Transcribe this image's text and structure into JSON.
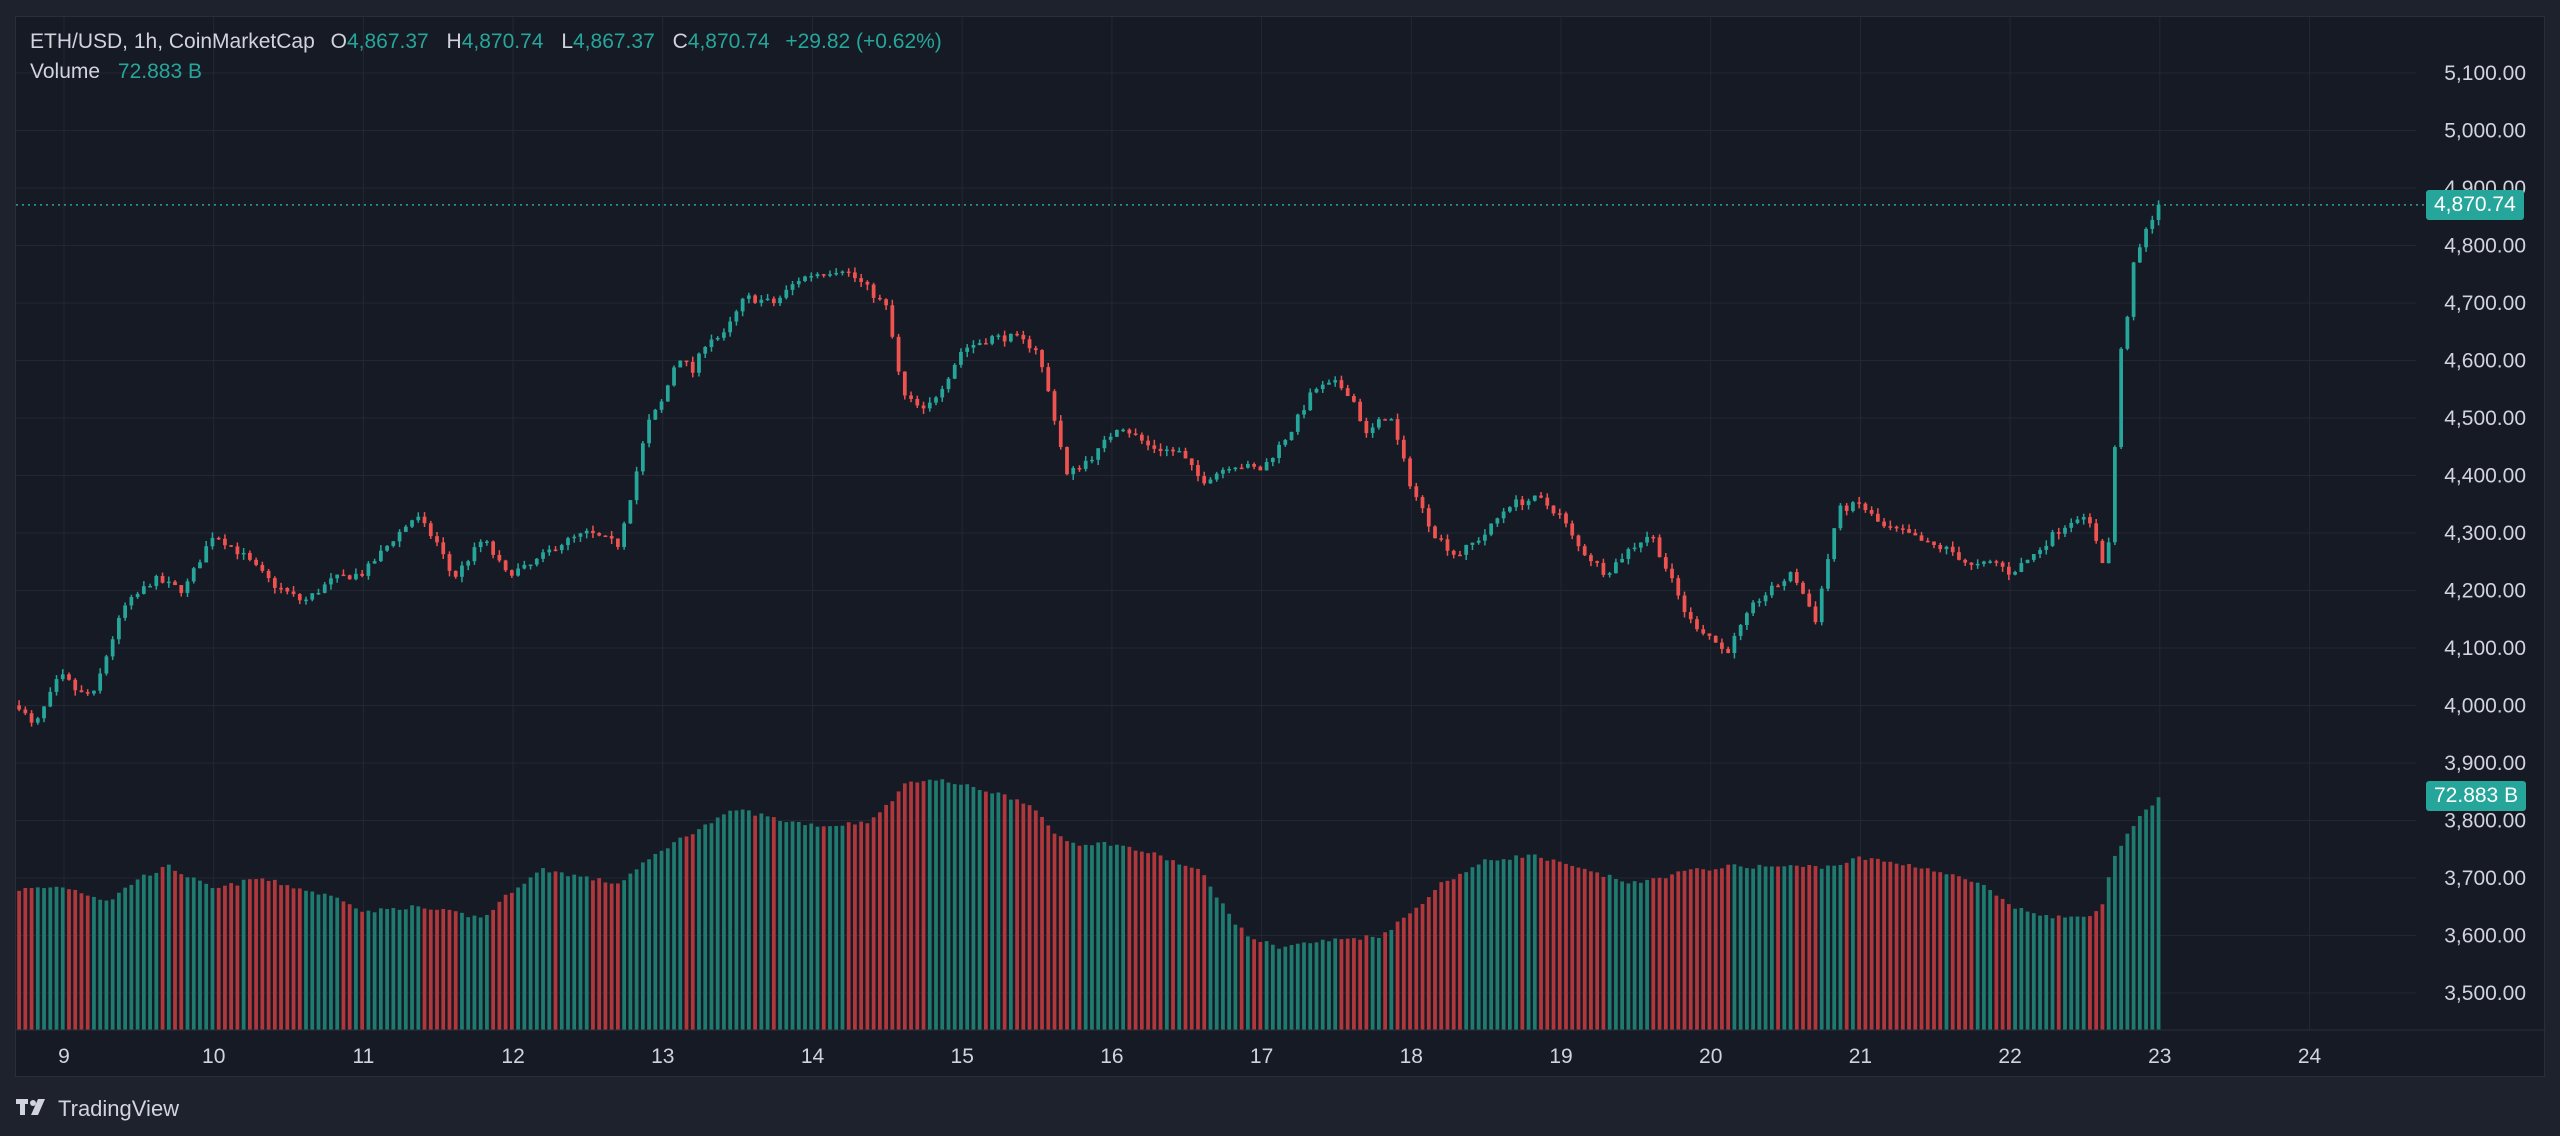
{
  "legend": {
    "symbol": "ETH/USD, 1h, CoinMarketCap",
    "o_label": "O",
    "o_value": "4,867.37",
    "h_label": "H",
    "h_value": "4,870.74",
    "l_label": "L",
    "l_value": "4,867.37",
    "c_label": "C",
    "c_value": "4,870.74",
    "change": "+29.82 (+0.62%)",
    "volume_label": "Volume",
    "volume_value": "72.883 B"
  },
  "price_tags": {
    "last_price": "4,870.74",
    "last_volume": "72.883 B"
  },
  "footer": {
    "brand": "TradingView"
  },
  "colors": {
    "up": "#26a69a",
    "down": "#ef5350",
    "up_volume": "#1f7a70",
    "down_volume": "#b0383c",
    "grid": "#232734",
    "text": "#d1d4dc"
  },
  "chart_data": {
    "type": "candlestick",
    "title": "ETH/USD, 1h, CoinMarketCap",
    "xlabel": "",
    "ylabel": "",
    "y_axis_labels": [
      "5,100.00",
      "5,000.00",
      "4,900.00",
      "4,800.00",
      "4,700.00",
      "4,600.00",
      "4,500.00",
      "4,400.00",
      "4,300.00",
      "4,200.00",
      "4,100.00",
      "4,000.00",
      "3,900.00",
      "3,800.00",
      "3,700.00",
      "3,600.00",
      "3,500.00"
    ],
    "y_axis_values": [
      5100,
      5000,
      4900,
      4800,
      4700,
      4600,
      4500,
      4400,
      4300,
      4200,
      4100,
      4000,
      3900,
      3800,
      3700,
      3600,
      3500
    ],
    "x_axis_labels": [
      "9",
      "10",
      "11",
      "12",
      "13",
      "14",
      "15",
      "16",
      "17",
      "18",
      "19",
      "20",
      "21",
      "22",
      "23",
      "24"
    ],
    "x_axis_days": [
      9,
      10,
      11,
      12,
      13,
      14,
      15,
      16,
      17,
      18,
      19,
      20,
      21,
      22,
      23,
      24
    ],
    "x_start_day": 8.7,
    "price_range": [
      3440,
      5150
    ],
    "last_price": 4870.74,
    "price_path": [
      [
        8.7,
        4000
      ],
      [
        8.8,
        3960
      ],
      [
        8.95,
        4040
      ],
      [
        9.0,
        4050
      ],
      [
        9.1,
        4020
      ],
      [
        9.2,
        4020
      ],
      [
        9.3,
        4100
      ],
      [
        9.4,
        4170
      ],
      [
        9.6,
        4220
      ],
      [
        9.8,
        4200
      ],
      [
        10.0,
        4300
      ],
      [
        10.2,
        4260
      ],
      [
        10.4,
        4210
      ],
      [
        10.6,
        4180
      ],
      [
        10.8,
        4220
      ],
      [
        11.0,
        4230
      ],
      [
        11.2,
        4290
      ],
      [
        11.35,
        4330
      ],
      [
        11.5,
        4280
      ],
      [
        11.6,
        4220
      ],
      [
        11.8,
        4290
      ],
      [
        11.95,
        4230
      ],
      [
        12.1,
        4240
      ],
      [
        12.3,
        4280
      ],
      [
        12.5,
        4300
      ],
      [
        12.7,
        4280
      ],
      [
        12.8,
        4380
      ],
      [
        12.9,
        4490
      ],
      [
        13.0,
        4530
      ],
      [
        13.1,
        4610
      ],
      [
        13.2,
        4580
      ],
      [
        13.3,
        4640
      ],
      [
        13.4,
        4640
      ],
      [
        13.55,
        4710
      ],
      [
        13.75,
        4700
      ],
      [
        13.9,
        4740
      ],
      [
        14.0,
        4750
      ],
      [
        14.2,
        4760
      ],
      [
        14.35,
        4730
      ],
      [
        14.5,
        4690
      ],
      [
        14.6,
        4540
      ],
      [
        14.75,
        4510
      ],
      [
        14.9,
        4570
      ],
      [
        15.0,
        4620
      ],
      [
        15.2,
        4640
      ],
      [
        15.35,
        4640
      ],
      [
        15.5,
        4620
      ],
      [
        15.6,
        4520
      ],
      [
        15.7,
        4400
      ],
      [
        15.9,
        4440
      ],
      [
        16.05,
        4490
      ],
      [
        16.25,
        4450
      ],
      [
        16.45,
        4440
      ],
      [
        16.6,
        4390
      ],
      [
        16.8,
        4420
      ],
      [
        17.0,
        4410
      ],
      [
        17.2,
        4480
      ],
      [
        17.35,
        4550
      ],
      [
        17.5,
        4560
      ],
      [
        17.6,
        4540
      ],
      [
        17.7,
        4470
      ],
      [
        17.85,
        4510
      ],
      [
        18.0,
        4380
      ],
      [
        18.15,
        4300
      ],
      [
        18.3,
        4260
      ],
      [
        18.5,
        4300
      ],
      [
        18.65,
        4350
      ],
      [
        18.85,
        4360
      ],
      [
        19.0,
        4330
      ],
      [
        19.1,
        4280
      ],
      [
        19.3,
        4230
      ],
      [
        19.45,
        4270
      ],
      [
        19.6,
        4300
      ],
      [
        19.7,
        4240
      ],
      [
        19.85,
        4150
      ],
      [
        20.0,
        4120
      ],
      [
        20.1,
        4090
      ],
      [
        20.3,
        4180
      ],
      [
        20.4,
        4200
      ],
      [
        20.55,
        4230
      ],
      [
        20.7,
        4150
      ],
      [
        20.85,
        4340
      ],
      [
        21.0,
        4350
      ],
      [
        21.15,
        4310
      ],
      [
        21.3,
        4300
      ],
      [
        21.45,
        4280
      ],
      [
        21.6,
        4270
      ],
      [
        21.75,
        4240
      ],
      [
        21.9,
        4250
      ],
      [
        22.0,
        4230
      ],
      [
        22.15,
        4260
      ],
      [
        22.3,
        4300
      ],
      [
        22.45,
        4330
      ],
      [
        22.55,
        4310
      ],
      [
        22.62,
        4250
      ],
      [
        22.68,
        4300
      ],
      [
        22.72,
        4600
      ],
      [
        22.76,
        4630
      ],
      [
        22.82,
        4760
      ],
      [
        22.9,
        4820
      ],
      [
        22.95,
        4850
      ],
      [
        23.0,
        4870.74
      ]
    ],
    "volume_range": [
      3440,
      5150
    ],
    "volume_path": [
      [
        8.7,
        3680
      ],
      [
        9.0,
        3685
      ],
      [
        9.3,
        3660
      ],
      [
        9.5,
        3700
      ],
      [
        9.7,
        3720
      ],
      [
        10.0,
        3680
      ],
      [
        10.3,
        3700
      ],
      [
        10.6,
        3680
      ],
      [
        10.9,
        3660
      ],
      [
        11.0,
        3640
      ],
      [
        11.3,
        3650
      ],
      [
        11.6,
        3640
      ],
      [
        11.8,
        3630
      ],
      [
        12.0,
        3680
      ],
      [
        12.2,
        3715
      ],
      [
        12.5,
        3700
      ],
      [
        12.7,
        3690
      ],
      [
        13.0,
        3750
      ],
      [
        13.2,
        3780
      ],
      [
        13.5,
        3820
      ],
      [
        13.8,
        3800
      ],
      [
        14.1,
        3790
      ],
      [
        14.4,
        3800
      ],
      [
        14.65,
        3870
      ],
      [
        14.85,
        3870
      ],
      [
        15.2,
        3850
      ],
      [
        15.45,
        3830
      ],
      [
        15.6,
        3780
      ],
      [
        15.75,
        3760
      ],
      [
        16.0,
        3760
      ],
      [
        16.3,
        3740
      ],
      [
        16.6,
        3710
      ],
      [
        16.8,
        3630
      ],
      [
        16.9,
        3600
      ],
      [
        17.1,
        3580
      ],
      [
        17.4,
        3590
      ],
      [
        17.8,
        3600
      ],
      [
        18.0,
        3640
      ],
      [
        18.2,
        3690
      ],
      [
        18.5,
        3730
      ],
      [
        18.8,
        3740
      ],
      [
        19.2,
        3710
      ],
      [
        19.5,
        3690
      ],
      [
        19.8,
        3710
      ],
      [
        20.1,
        3720
      ],
      [
        20.4,
        3720
      ],
      [
        20.8,
        3720
      ],
      [
        21.0,
        3735
      ],
      [
        21.4,
        3720
      ],
      [
        21.8,
        3690
      ],
      [
        22.0,
        3650
      ],
      [
        22.3,
        3630
      ],
      [
        22.6,
        3640
      ],
      [
        22.7,
        3740
      ],
      [
        22.85,
        3800
      ],
      [
        23.0,
        3840
      ]
    ]
  }
}
